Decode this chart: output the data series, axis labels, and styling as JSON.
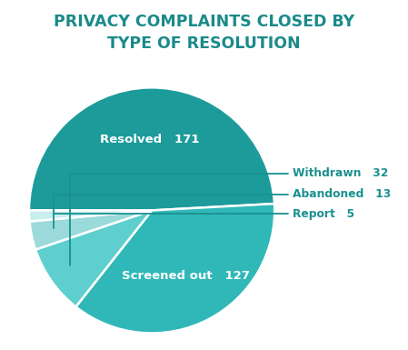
{
  "title": "PRIVACY COMPLAINTS CLOSED BY\nTYPE OF RESOLUTION",
  "title_color": "#1a8a8a",
  "title_fontsize": 12.5,
  "slices": [
    {
      "label": "Resolved",
      "value": 171,
      "color": "#1d9b9b"
    },
    {
      "label": "Screened out",
      "value": 127,
      "color": "#30b8b8"
    },
    {
      "label": "Withdrawn",
      "value": 32,
      "color": "#5ecece"
    },
    {
      "label": "Abandoned",
      "value": 13,
      "color": "#9adada"
    },
    {
      "label": "Report",
      "value": 5,
      "color": "#c8eeee"
    }
  ],
  "external_label_color": "#1a9090",
  "background_color": "#ffffff",
  "wedge_linewidth": 1.8,
  "wedge_linecolor": "#ffffff"
}
